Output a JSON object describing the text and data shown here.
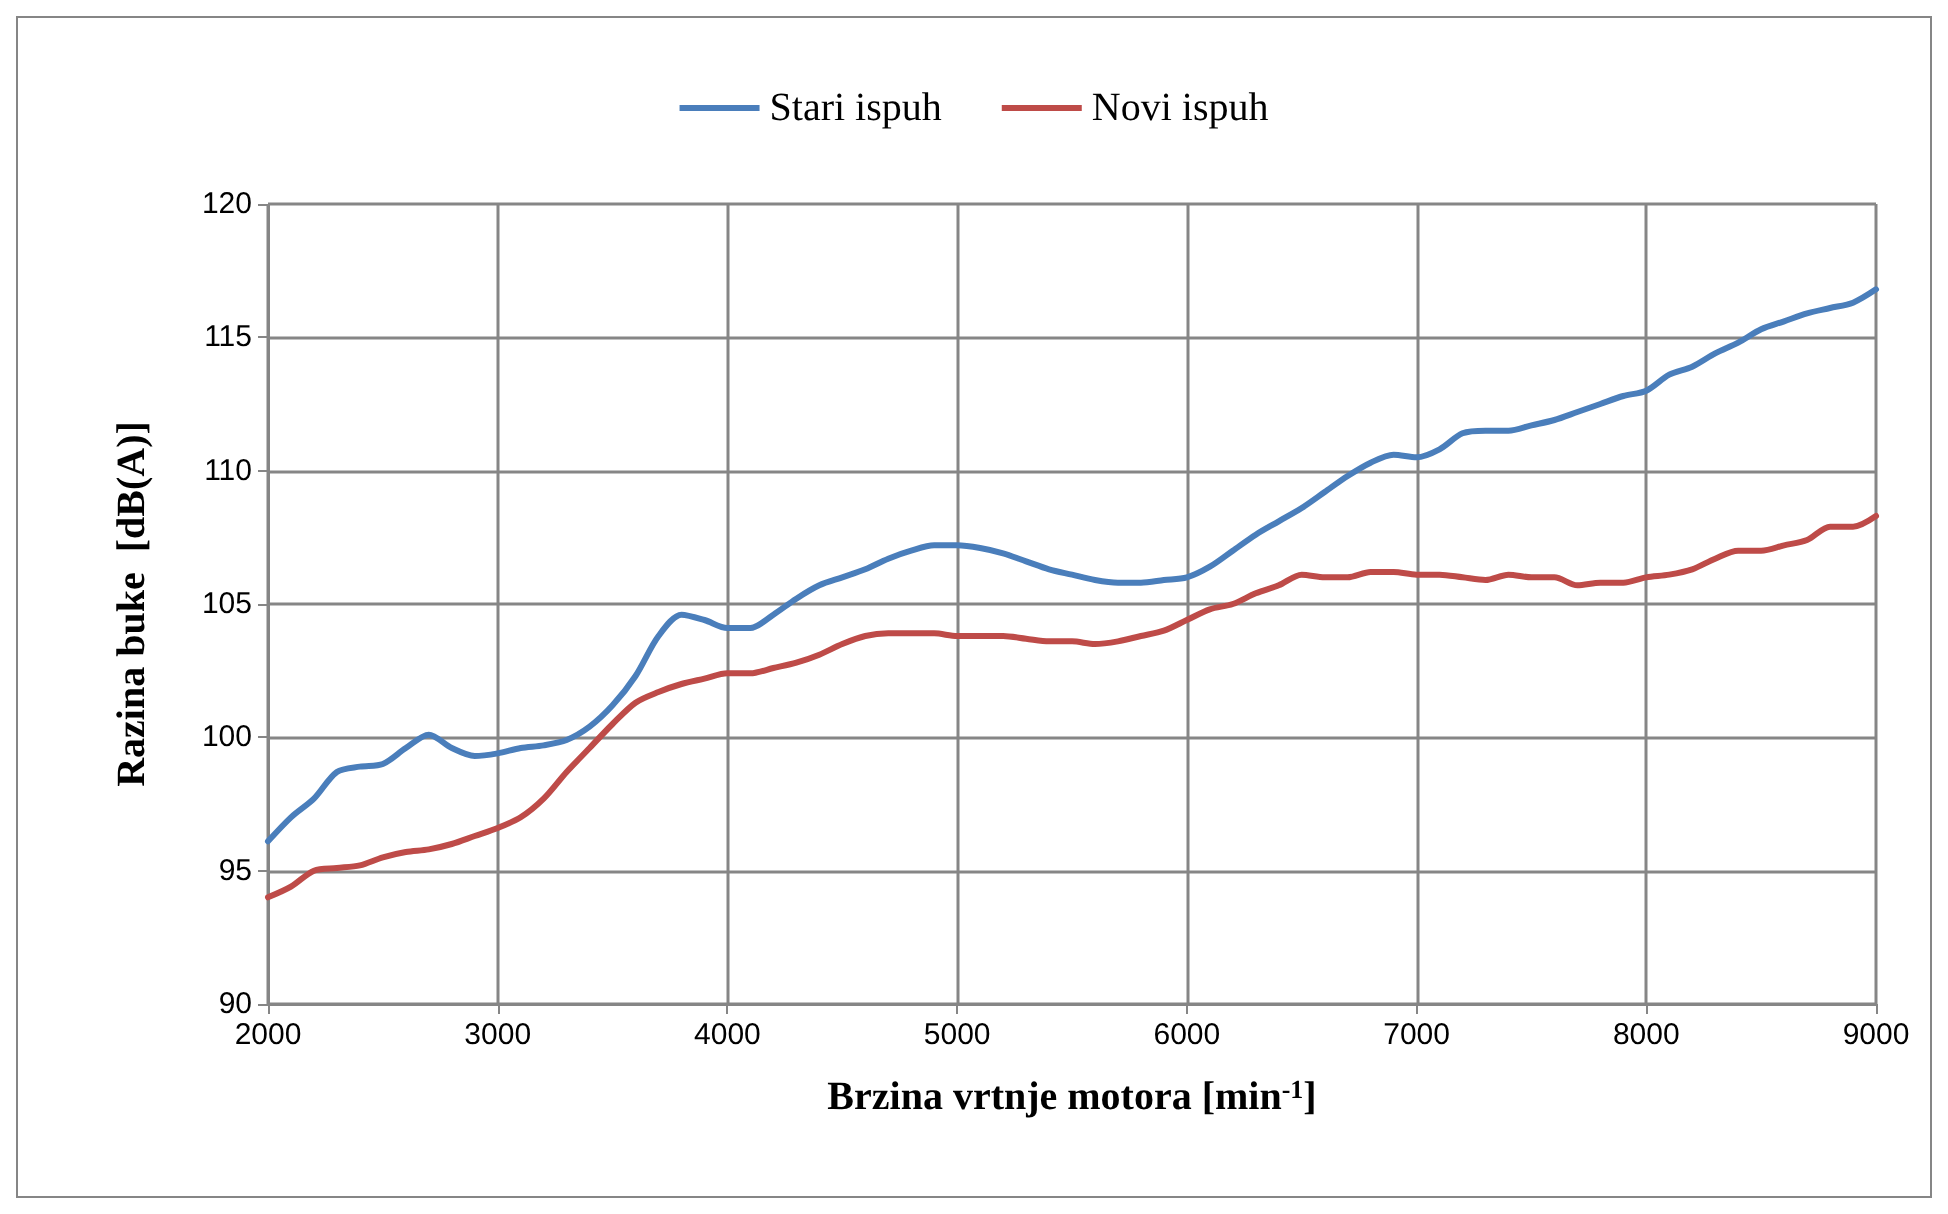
{
  "chart_data": {
    "type": "line",
    "xlabel": "Brzina vrtnje motora [min$^{-1}$]",
    "ylabel": "Razina buke  [dB(A)]",
    "x": [
      2000,
      2100,
      2200,
      2300,
      2400,
      2500,
      2600,
      2700,
      2800,
      2900,
      3000,
      3100,
      3200,
      3300,
      3400,
      3500,
      3600,
      3700,
      3800,
      3900,
      4000,
      4100,
      4200,
      4300,
      4400,
      4500,
      4600,
      4700,
      4800,
      4900,
      5000,
      5100,
      5200,
      5300,
      5400,
      5500,
      5600,
      5700,
      5800,
      5900,
      6000,
      6100,
      6200,
      6300,
      6400,
      6500,
      6600,
      6700,
      6800,
      6900,
      7000,
      7100,
      7200,
      7300,
      7400,
      7500,
      7600,
      7700,
      7800,
      7900,
      8000,
      8100,
      8200,
      8300,
      8400,
      8500,
      8600,
      8700,
      8800,
      8900,
      9000
    ],
    "series": [
      {
        "name": "Stari ispuh",
        "color": "#4a7ebb",
        "values": [
          96.1,
          97.0,
          97.7,
          98.7,
          98.9,
          99.0,
          99.6,
          100.1,
          99.6,
          99.3,
          99.4,
          99.6,
          99.7,
          99.9,
          100.4,
          101.2,
          102.3,
          103.8,
          104.6,
          104.4,
          104.1,
          104.1,
          104.6,
          105.2,
          105.7,
          106.0,
          106.3,
          106.7,
          107.0,
          107.2,
          107.2,
          107.1,
          106.9,
          106.6,
          106.3,
          106.1,
          105.9,
          105.8,
          105.8,
          105.9,
          106.0,
          106.4,
          107.0,
          107.6,
          108.1,
          108.6,
          109.2,
          109.8,
          110.3,
          110.6,
          110.5,
          110.8,
          111.4,
          111.5,
          111.5,
          111.7,
          111.9,
          112.2,
          112.5,
          112.8,
          113.0,
          113.6,
          113.9,
          114.4,
          114.8,
          115.3,
          115.6,
          115.9,
          116.1,
          116.3,
          116.8
        ]
      },
      {
        "name": "Novi ispuh",
        "color": "#be4b48",
        "values": [
          94.0,
          94.4,
          95.0,
          95.1,
          95.2,
          95.5,
          95.7,
          95.8,
          96.0,
          96.3,
          96.6,
          97.0,
          97.7,
          98.7,
          99.6,
          100.5,
          101.3,
          101.7,
          102.0,
          102.2,
          102.4,
          102.4,
          102.6,
          102.8,
          103.1,
          103.5,
          103.8,
          103.9,
          103.9,
          103.9,
          103.8,
          103.8,
          103.8,
          103.7,
          103.6,
          103.6,
          103.5,
          103.6,
          103.8,
          104.0,
          104.4,
          104.8,
          105.0,
          105.4,
          105.7,
          106.1,
          106.0,
          106.0,
          106.2,
          106.2,
          106.1,
          106.1,
          106.0,
          105.9,
          106.1,
          106.0,
          106.0,
          105.7,
          105.8,
          105.8,
          106.0,
          106.1,
          106.3,
          106.7,
          107.0,
          107.0,
          107.2,
          107.4,
          107.9,
          107.9,
          108.3
        ]
      }
    ],
    "xlim": [
      2000,
      9000
    ],
    "xticks": [
      2000,
      3000,
      4000,
      5000,
      6000,
      7000,
      8000,
      9000
    ],
    "ylim": [
      90,
      120
    ],
    "yticks": [
      90,
      95,
      100,
      105,
      110,
      115,
      120
    ],
    "grid": true,
    "legend": "top",
    "marker": "none",
    "line_style": "solid"
  }
}
